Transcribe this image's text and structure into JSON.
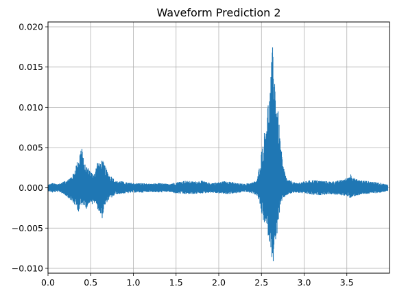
{
  "chart_data": {
    "type": "line",
    "title": "Waveform Prediction 2",
    "xlabel": "",
    "ylabel": "",
    "xlim": [
      0.0,
      4.0
    ],
    "ylim": [
      -0.0106,
      0.0206
    ],
    "grid": true,
    "x_ticks": [
      "0.0",
      "0.5",
      "1.0",
      "1.5",
      "2.0",
      "2.5",
      "3.0",
      "3.5"
    ],
    "y_ticks": [
      "0.020",
      "0.015",
      "0.010",
      "0.005",
      "0.000",
      "−0.005",
      "−0.010"
    ],
    "series": [
      {
        "name": "",
        "color": "#1f77b4",
        "envelope": {
          "x": [
            0.0,
            0.05,
            0.1,
            0.15,
            0.2,
            0.25,
            0.3,
            0.33,
            0.36,
            0.38,
            0.4,
            0.42,
            0.45,
            0.48,
            0.5,
            0.52,
            0.55,
            0.58,
            0.6,
            0.63,
            0.66,
            0.69,
            0.72,
            0.75,
            0.8,
            0.85,
            0.9,
            1.0,
            1.1,
            1.2,
            1.3,
            1.4,
            1.5,
            1.6,
            1.7,
            1.8,
            1.9,
            2.0,
            2.1,
            2.2,
            2.3,
            2.4,
            2.45,
            2.48,
            2.5,
            2.52,
            2.55,
            2.58,
            2.6,
            2.62,
            2.64,
            2.66,
            2.68,
            2.7,
            2.72,
            2.75,
            2.8,
            2.85,
            2.9,
            3.0,
            3.1,
            3.2,
            3.3,
            3.4,
            3.5,
            3.55,
            3.6,
            3.7,
            3.8,
            3.9,
            3.98
          ],
          "max": [
            0.0004,
            0.0006,
            0.0005,
            0.0006,
            0.0009,
            0.0012,
            0.0018,
            0.003,
            0.0037,
            0.0048,
            0.0055,
            0.003,
            0.0028,
            0.0024,
            0.0022,
            0.0018,
            0.002,
            0.0034,
            0.003,
            0.0036,
            0.003,
            0.0022,
            0.0016,
            0.0014,
            0.0008,
            0.0009,
            0.0007,
            0.0006,
            0.0006,
            0.0005,
            0.0006,
            0.0005,
            0.0007,
            0.0009,
            0.0008,
            0.0009,
            0.0006,
            0.0007,
            0.0009,
            0.0006,
            0.0005,
            0.0007,
            0.001,
            0.003,
            0.0045,
            0.006,
            0.008,
            0.011,
            0.012,
            0.016,
            0.019,
            0.013,
            0.011,
            0.009,
            0.006,
            0.003,
            0.001,
            0.0009,
            0.0006,
            0.0008,
            0.001,
            0.0009,
            0.0008,
            0.0009,
            0.0012,
            0.0018,
            0.0011,
            0.0009,
            0.0008,
            0.0006,
            0.0004
          ],
          "min": [
            -0.0004,
            -0.0006,
            -0.0005,
            -0.0006,
            -0.0009,
            -0.0014,
            -0.002,
            -0.0024,
            -0.003,
            -0.0022,
            -0.0025,
            -0.002,
            -0.0026,
            -0.002,
            -0.0016,
            -0.0022,
            -0.0018,
            -0.0026,
            -0.003,
            -0.004,
            -0.0026,
            -0.0018,
            -0.0014,
            -0.0012,
            -0.0008,
            -0.0008,
            -0.0007,
            -0.0006,
            -0.0006,
            -0.0005,
            -0.0006,
            -0.0005,
            -0.0007,
            -0.0008,
            -0.0008,
            -0.0007,
            -0.0006,
            -0.0007,
            -0.0008,
            -0.0007,
            -0.0005,
            -0.0007,
            -0.001,
            -0.002,
            -0.0032,
            -0.004,
            -0.005,
            -0.006,
            -0.007,
            -0.0085,
            -0.0093,
            -0.008,
            -0.006,
            -0.004,
            -0.0025,
            -0.0014,
            -0.0009,
            -0.0007,
            -0.0006,
            -0.0007,
            -0.0009,
            -0.0009,
            -0.0008,
            -0.0009,
            -0.001,
            -0.0014,
            -0.001,
            -0.0008,
            -0.0007,
            -0.0006,
            -0.0004
          ]
        }
      }
    ]
  }
}
